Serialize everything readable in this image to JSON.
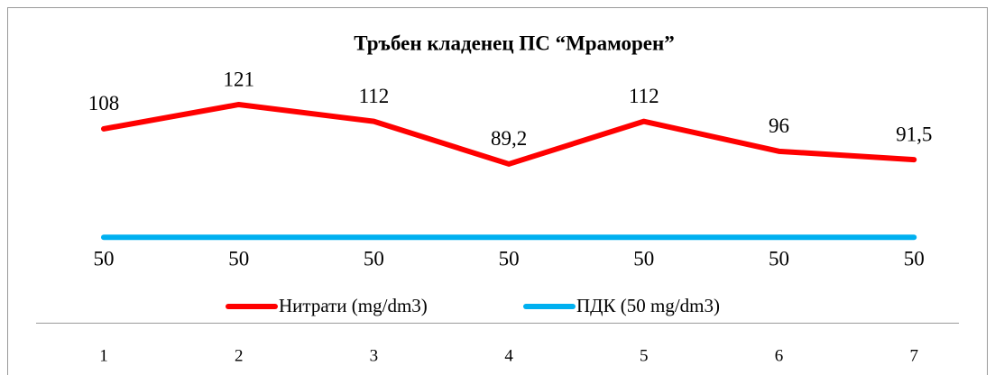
{
  "chart_data": {
    "type": "line",
    "title": "Тръбен кладенец ПС “Мраморен”",
    "categories": [
      "1",
      "2",
      "3",
      "4",
      "5",
      "6",
      "7"
    ],
    "series": [
      {
        "name": "Нитрати (mg/dm3)",
        "color": "#ff0000",
        "values": [
          108,
          121,
          112,
          89.2,
          112,
          96,
          91.5
        ],
        "value_labels": [
          "108",
          "121",
          "112",
          "89,2",
          "112",
          "96",
          "91,5"
        ]
      },
      {
        "name": "ПДК (50 mg/dm3)",
        "color": "#00b0f0",
        "values": [
          50,
          50,
          50,
          50,
          50,
          50,
          50
        ]
      }
    ],
    "ylim": [
      40,
      130
    ]
  }
}
